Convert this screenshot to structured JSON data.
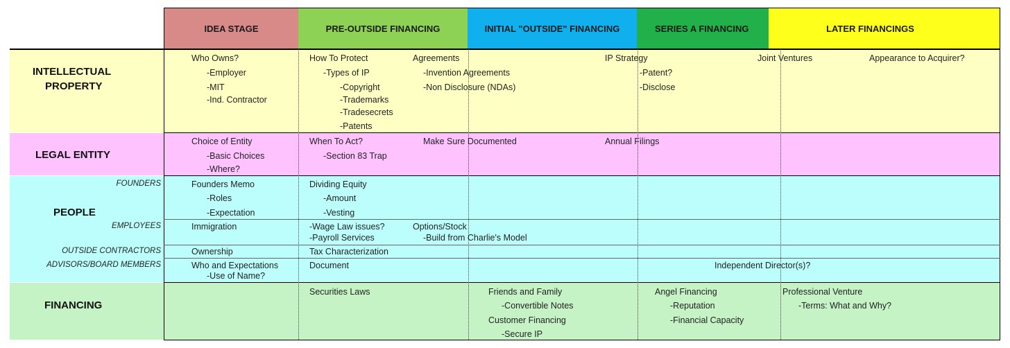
{
  "headers": [
    {
      "label": "IDEA STAGE",
      "color": "#d78a87"
    },
    {
      "label": "PRE-OUTSIDE FINANCING",
      "color": "#8ed255"
    },
    {
      "label": "INITIAL \"OUTSIDE\" FINANCING",
      "color": "#10b0ef"
    },
    {
      "label": "SERIES A FINANCING",
      "color": "#21b04a"
    },
    {
      "label": "LATER FINANCINGS",
      "color": "#ffff1c"
    }
  ],
  "rows": {
    "ip": {
      "label": "INTELLECTUAL PROPERTY",
      "label_line1": "INTELLECTUAL",
      "label_line2": "PROPERTY",
      "color": "#feffc2"
    },
    "legal": {
      "label": "LEGAL ENTITY",
      "color": "#fec3fe"
    },
    "people": {
      "label": "PEOPLE",
      "color": "#bbfefb"
    },
    "financing": {
      "label": "FINANCING",
      "color": "#c5f3c5"
    }
  },
  "sublabels": {
    "founders": "FOUNDERS",
    "employees": "EMPLOYEES",
    "contractors": "OUTSIDE CONTRACTORS",
    "advisors": "ADVISORS/BOARD MEMBERS"
  },
  "cells": {
    "ip": {
      "who_owns": "Who Owns?",
      "employer": "-Employer",
      "mit": "-MIT",
      "ind_contractor": "-Ind. Contractor",
      "how_to_protect": "How To Protect",
      "types_of_ip": "-Types of IP",
      "copyright": "-Copyright",
      "trademarks": "-Trademarks",
      "tradesecrets": "-Tradesecrets",
      "patents": "-Patents",
      "agreements": "Agreements",
      "invention_agreements": "-Invention Agreements",
      "nda": "-Non Disclosure (NDAs)",
      "ip_strategy": "IP Strategy",
      "patent": "-Patent?",
      "disclose": "-Disclose",
      "joint_ventures": "Joint Ventures",
      "appearance": "Appearance to Acquirer?"
    },
    "legal": {
      "choice_of_entity": "Choice of Entity",
      "basic_choices": "-Basic Choices",
      "where": "-Where?",
      "when_to_act": "When To Act?",
      "section_83": "-Section 83 Trap",
      "make_sure": "Make Sure Documented",
      "annual_filings": "Annual Filings"
    },
    "people": {
      "founders_memo": "Founders Memo",
      "roles": "-Roles",
      "expectation": "-Expectation",
      "dividing_equity": "Dividing Equity",
      "amount": "-Amount",
      "vesting": "-Vesting",
      "immigration": "Immigration",
      "wage_law": "-Wage Law issues?",
      "payroll": "-Payroll Services",
      "options_stock": "Options/Stock",
      "build_model": "-Build from Charlie's Model",
      "ownership": "Ownership",
      "tax_char": "Tax Characterization",
      "who_expectations": "Who and Expectations",
      "use_of_name": "-Use of Name?",
      "document": "Document",
      "independent_directors": "Independent Director(s)?"
    },
    "financing": {
      "securities_laws": "Securities Laws",
      "friends_family": "Friends and Family",
      "convertible_notes": "-Convertible Notes",
      "customer_financing": "Customer Financing",
      "secure_ip": "-Secure IP",
      "angel_financing": "Angel Financing",
      "reputation": "-Reputation",
      "financial_capacity": "-Financial Capacity",
      "professional_venture": "Professional Venture",
      "terms": "-Terms:  What and Why?"
    }
  }
}
